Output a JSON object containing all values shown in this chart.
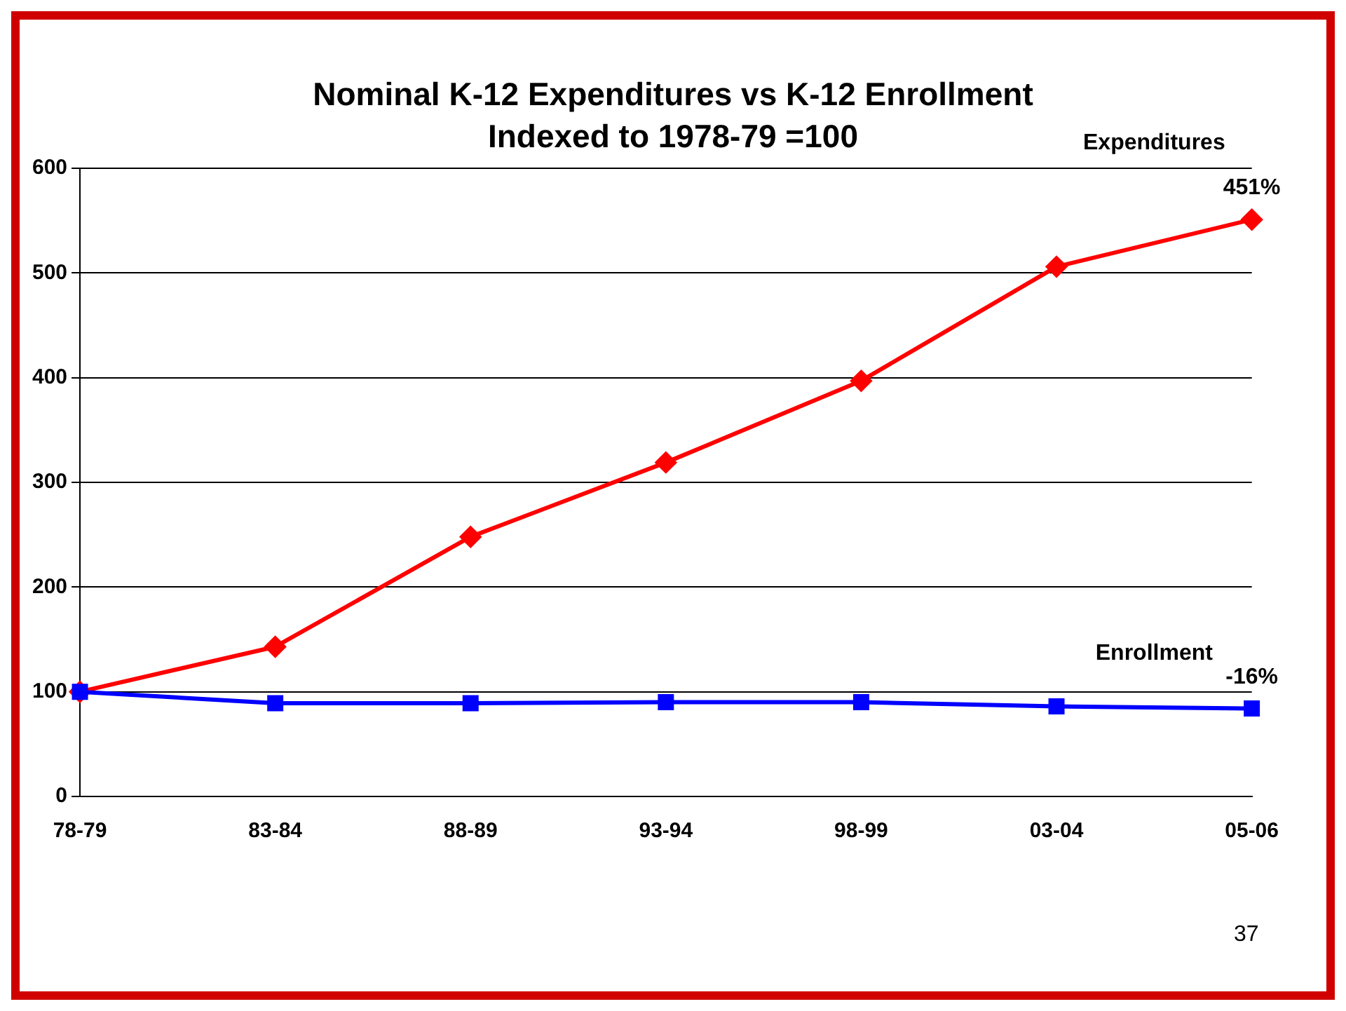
{
  "chart_data": {
    "type": "line",
    "title": "Nominal K-12 Expenditures vs K-12 Enrollment\nIndexed to 1978-79 =100",
    "categories": [
      "78-79",
      "83-84",
      "88-89",
      "93-94",
      "98-99",
      "03-04",
      "05-06"
    ],
    "series": [
      {
        "name": "Expenditures",
        "color": "#ff0000",
        "marker": "diamond",
        "values": [
          100,
          143,
          248,
          319,
          397,
          506,
          551
        ]
      },
      {
        "name": "Enrollment",
        "color": "#0000ff",
        "marker": "square",
        "values": [
          100,
          89,
          89,
          90,
          90,
          86,
          84
        ]
      }
    ],
    "ylim": [
      0,
      600
    ],
    "yticks": [
      0,
      100,
      200,
      300,
      400,
      500,
      600
    ],
    "grid": "y",
    "legend": false,
    "annotations": [
      {
        "text": "451%",
        "x": "05-06",
        "y": 551
      },
      {
        "text": "-16%",
        "x": "05-06",
        "y": 84
      },
      "37"
    ]
  }
}
